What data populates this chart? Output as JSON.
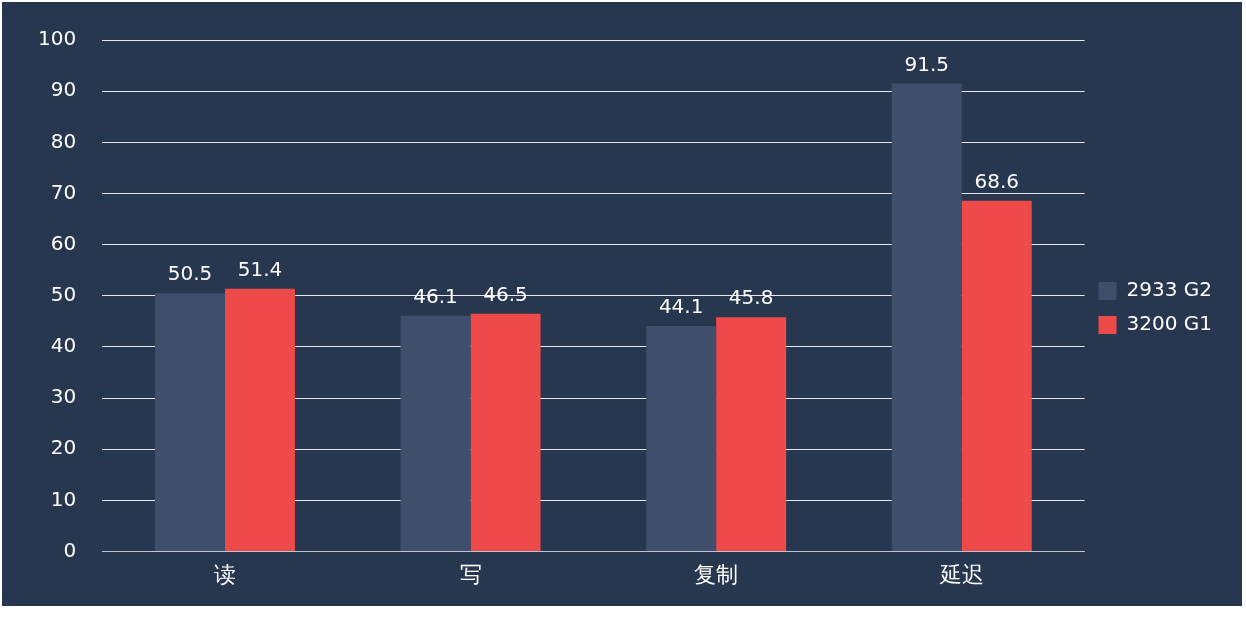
{
  "chart_data": {
    "type": "bar",
    "categories": [
      "读",
      "写",
      "复制",
      "延迟"
    ],
    "series": [
      {
        "name": "2933 G2",
        "color": "#3f4e6a",
        "values": [
          50.5,
          46.1,
          44.1,
          91.5
        ]
      },
      {
        "name": "3200 G1",
        "color": "#ef4a4a",
        "values": [
          51.4,
          46.5,
          45.8,
          68.6
        ]
      }
    ],
    "ylim": [
      0,
      100
    ],
    "yticks": [
      0,
      10,
      20,
      30,
      40,
      50,
      60,
      70,
      80,
      90,
      100
    ],
    "grid": "y",
    "legend": "right",
    "data_labels": true
  }
}
